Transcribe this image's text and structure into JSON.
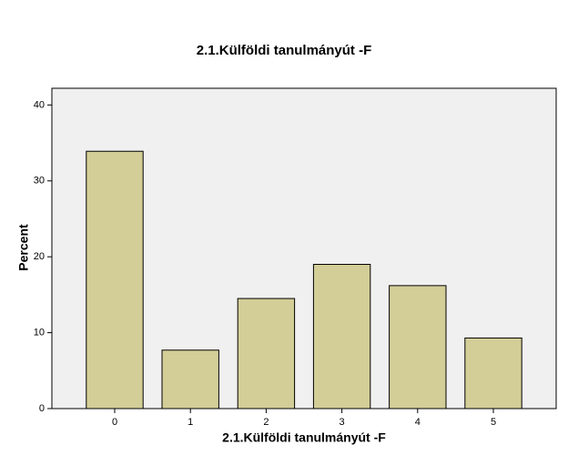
{
  "chart_data": {
    "type": "bar",
    "title": "2.1.Külföldi tanulmányút -F",
    "x_label": "2.1.Külföldi tanulmányút -F",
    "y_label": "Percent",
    "categories": [
      "0",
      "1",
      "2",
      "3",
      "4",
      "5"
    ],
    "values": [
      33.9,
      7.7,
      14.5,
      19.0,
      16.2,
      9.3
    ],
    "color": "#d3ce98",
    "ylim": [
      0,
      42.2
    ],
    "yticks": [
      0,
      10,
      20,
      30,
      40
    ],
    "grid": false
  }
}
